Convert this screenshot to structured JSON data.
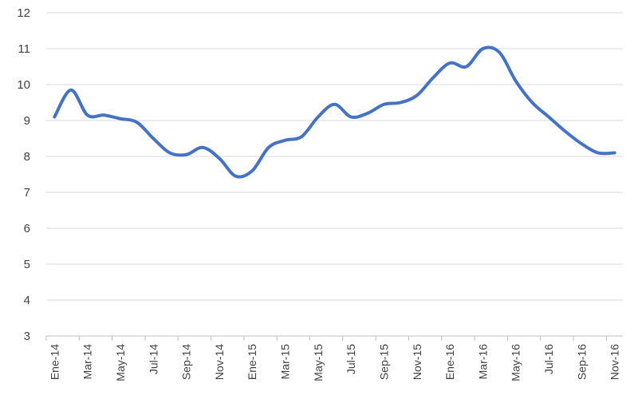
{
  "chart_data": {
    "type": "line",
    "title": "",
    "xlabel": "",
    "ylabel": "",
    "ylim": [
      3,
      12
    ],
    "yticks": [
      3,
      4,
      5,
      6,
      7,
      8,
      9,
      10,
      11,
      12
    ],
    "grid": true,
    "legend": "none",
    "x": [
      "Ene-14",
      "Feb-14",
      "Mar-14",
      "Apr-14",
      "May-14",
      "Jun-14",
      "Jul-14",
      "Ago-14",
      "Sep-14",
      "Oct-14",
      "Nov-14",
      "Dic-14",
      "Ene-15",
      "Feb-15",
      "Mar-15",
      "Abr-15",
      "May-15",
      "Jun-15",
      "Jul-15",
      "Ago-15",
      "Sep-15",
      "Oct-15",
      "Nov-15",
      "Dic-15",
      "Ene-16",
      "Feb-16",
      "Mar-16",
      "Abr-16",
      "May-16",
      "Jun-16",
      "Jul-16",
      "Ago-16",
      "Sep-16",
      "Oct-16",
      "Nov-16"
    ],
    "x_tick_labels": [
      "Ene-14",
      "Mar-14",
      "May-14",
      "Jul-14",
      "Sep-14",
      "Nov-14",
      "Ene-15",
      "Mar-15",
      "May-15",
      "Jul-15",
      "Sep-15",
      "Nov-15",
      "Ene-16",
      "Mar-16",
      "May-16",
      "Jul-16",
      "Sep-16",
      "Nov-16"
    ],
    "series": [
      {
        "color": "#4472c4",
        "values": [
          9.1,
          9.85,
          9.15,
          9.15,
          9.05,
          8.95,
          8.5,
          8.1,
          8.05,
          8.25,
          7.95,
          7.45,
          7.6,
          8.25,
          8.45,
          8.55,
          9.1,
          9.45,
          9.1,
          9.2,
          9.45,
          9.5,
          9.7,
          10.2,
          10.6,
          10.5,
          11.0,
          10.9,
          10.1,
          9.5,
          9.1,
          8.7,
          8.35,
          8.1,
          8.1
        ]
      }
    ]
  }
}
